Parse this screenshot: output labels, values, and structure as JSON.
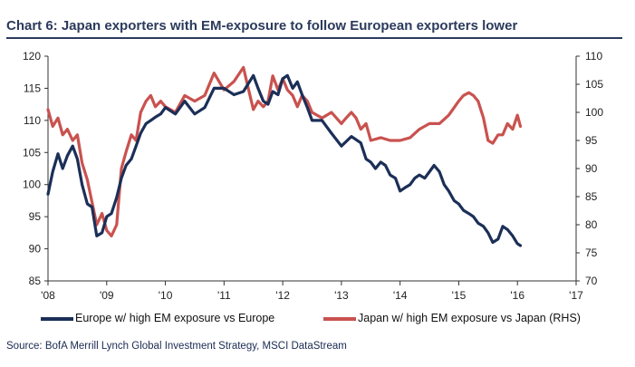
{
  "title": "Chart 6: Japan exporters with EM-exposure to follow European exporters lower",
  "source": "Source: BofA Merrill Lynch Global Investment Strategy, MSCI DataStream",
  "colors": {
    "europe": "#1b2f57",
    "japan": "#c9524f",
    "title": "#2b3a5c",
    "axis": "#333333"
  },
  "chart_data": {
    "type": "line",
    "xlabel": "",
    "ylabel": "",
    "x_ticks": [
      "'08",
      "'09",
      "'10",
      "'11",
      "'12",
      "'13",
      "'14",
      "'15",
      "'16",
      "'17"
    ],
    "xlim": [
      2008,
      2017
    ],
    "ylim_left": [
      85,
      120
    ],
    "yticks_left": [
      85,
      90,
      95,
      100,
      105,
      110,
      115,
      120
    ],
    "ylim_right": [
      70,
      110
    ],
    "yticks_right": [
      70,
      75,
      80,
      85,
      90,
      95,
      100,
      105,
      110
    ],
    "grid": false,
    "legend_position": "bottom",
    "series": [
      {
        "name": "Europe w/ high EM exposure vs Europe",
        "axis": "left",
        "x": [
          2008.0,
          2008.08,
          2008.17,
          2008.25,
          2008.33,
          2008.42,
          2008.5,
          2008.58,
          2008.67,
          2008.75,
          2008.83,
          2008.92,
          2009.0,
          2009.08,
          2009.17,
          2009.25,
          2009.33,
          2009.42,
          2009.5,
          2009.58,
          2009.67,
          2009.75,
          2009.83,
          2009.92,
          2010.0,
          2010.17,
          2010.33,
          2010.5,
          2010.67,
          2010.83,
          2011.0,
          2011.17,
          2011.33,
          2011.5,
          2011.58,
          2011.67,
          2011.75,
          2011.83,
          2011.92,
          2012.0,
          2012.08,
          2012.17,
          2012.25,
          2012.33,
          2012.42,
          2012.5,
          2012.67,
          2012.83,
          2013.0,
          2013.17,
          2013.33,
          2013.42,
          2013.5,
          2013.58,
          2013.67,
          2013.75,
          2013.83,
          2013.92,
          2014.0,
          2014.08,
          2014.17,
          2014.25,
          2014.33,
          2014.42,
          2014.5,
          2014.58,
          2014.67,
          2014.75,
          2014.83,
          2014.92,
          2015.0,
          2015.08,
          2015.17,
          2015.25,
          2015.33,
          2015.42,
          2015.5,
          2015.58,
          2015.67,
          2015.75,
          2015.83,
          2015.92,
          2016.0,
          2016.05
        ],
        "values": [
          98.5,
          102,
          104.8,
          102.5,
          104.5,
          106,
          104,
          100,
          97,
          96.5,
          92,
          92.5,
          95,
          95.5,
          98,
          101,
          103,
          104,
          106,
          108,
          109.5,
          110,
          110.5,
          111,
          112,
          111,
          113,
          111,
          112,
          115,
          115,
          114,
          114.5,
          117,
          115,
          113,
          112.5,
          114.5,
          114,
          116.5,
          117,
          115,
          116,
          114,
          112,
          110,
          110,
          108,
          106,
          107.5,
          106.5,
          104,
          103.5,
          102.5,
          103.5,
          103,
          101.5,
          101,
          99,
          99.5,
          100,
          101,
          101.5,
          101,
          102,
          103,
          102,
          100,
          99,
          97.5,
          97,
          96,
          95.5,
          95,
          94,
          93.5,
          92.5,
          91,
          91.5,
          93.5,
          93,
          92,
          90.8,
          90.5
        ]
      },
      {
        "name": "Japan w/ high EM exposure vs Japan (RHS)",
        "axis": "right",
        "x": [
          2008.0,
          2008.08,
          2008.17,
          2008.25,
          2008.33,
          2008.42,
          2008.5,
          2008.58,
          2008.67,
          2008.75,
          2008.83,
          2008.92,
          2009.0,
          2009.08,
          2009.17,
          2009.25,
          2009.33,
          2009.42,
          2009.5,
          2009.58,
          2009.67,
          2009.75,
          2009.83,
          2009.92,
          2010.0,
          2010.17,
          2010.33,
          2010.5,
          2010.67,
          2010.83,
          2011.0,
          2011.17,
          2011.33,
          2011.42,
          2011.5,
          2011.58,
          2011.67,
          2011.75,
          2011.83,
          2011.92,
          2012.0,
          2012.08,
          2012.17,
          2012.25,
          2012.33,
          2012.42,
          2012.5,
          2012.67,
          2012.83,
          2013.0,
          2013.08,
          2013.17,
          2013.25,
          2013.33,
          2013.42,
          2013.5,
          2013.67,
          2013.83,
          2014.0,
          2014.17,
          2014.33,
          2014.5,
          2014.67,
          2014.83,
          2015.0,
          2015.08,
          2015.17,
          2015.25,
          2015.33,
          2015.42,
          2015.5,
          2015.58,
          2015.67,
          2015.75,
          2015.83,
          2015.92,
          2016.0,
          2016.05
        ],
        "values": [
          100.5,
          97.5,
          99,
          96,
          97,
          95,
          96,
          91,
          88,
          84,
          80,
          82,
          79,
          78,
          80,
          90,
          93,
          96,
          95,
          100,
          102,
          103,
          101,
          102,
          101,
          100,
          103,
          102,
          103,
          107,
          104,
          105.5,
          108,
          104,
          100.5,
          102,
          101,
          102,
          106.5,
          104,
          106,
          104,
          103,
          101,
          103,
          102,
          100,
          99,
          100,
          98,
          99,
          100,
          99,
          97,
          98,
          95,
          95.5,
          95,
          95,
          95.5,
          97,
          98,
          98,
          99.5,
          102,
          103,
          103.5,
          103,
          102,
          99,
          95,
          94.5,
          96,
          96,
          98,
          97,
          99.5,
          97.5
        ]
      }
    ]
  }
}
